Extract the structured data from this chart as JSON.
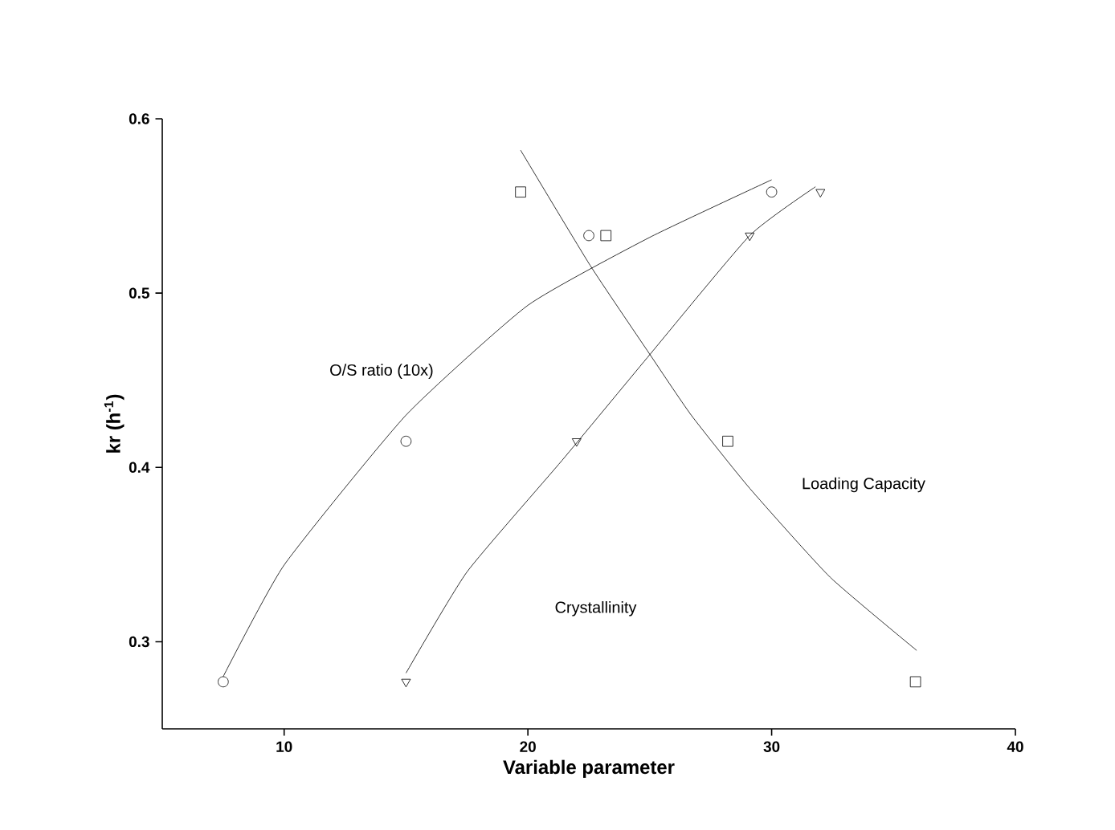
{
  "chart_data": {
    "type": "scatter",
    "xlabel": "Variable parameter",
    "ylabel": "kr (h$^{-1}$)",
    "xlim": [
      5,
      40
    ],
    "ylim": [
      0.25,
      0.6
    ],
    "xticks": [
      10,
      20,
      30,
      40
    ],
    "yticks": [
      0.3,
      0.4,
      0.5,
      0.6
    ],
    "series": [
      {
        "marker": "circle",
        "color": "#000000",
        "x": [
          7.5,
          15,
          22.5,
          30
        ],
        "values": [
          0.277,
          0.415,
          0.533,
          0.558
        ]
      },
      {
        "marker": "square",
        "color": "#000000",
        "x": [
          19.7,
          23.2,
          28.2,
          35.9
        ],
        "values": [
          0.558,
          0.533,
          0.415,
          0.277
        ]
      },
      {
        "marker": "triangle",
        "color": "#000000",
        "x": [
          15,
          22,
          29.1,
          32
        ],
        "values": [
          0.277,
          0.415,
          0.533,
          0.558
        ]
      },
      {
        "type": "line",
        "marker": "none",
        "color": "#000000",
        "x": [
          7.5,
          10,
          15,
          20,
          25,
          30
        ],
        "values": [
          0.28,
          0.344,
          0.43,
          0.493,
          0.532,
          0.565
        ]
      },
      {
        "type": "line",
        "marker": "none",
        "color": "#000000",
        "x": [
          15,
          17.5,
          21.4,
          24.9,
          29.1,
          31.8
        ],
        "values": [
          0.282,
          0.34,
          0.404,
          0.463,
          0.533,
          0.561
        ]
      },
      {
        "type": "line",
        "marker": "none",
        "color": "#000000",
        "x": [
          19.7,
          22.55,
          24.9,
          26.7,
          29.1,
          32.4,
          35.95
        ],
        "values": [
          0.582,
          0.516,
          0.467,
          0.43,
          0.388,
          0.337,
          0.295
        ]
      }
    ],
    "annotations": [
      "O/S ratio (10x)",
      "Crystallinity",
      "Loading Capacity"
    ]
  }
}
